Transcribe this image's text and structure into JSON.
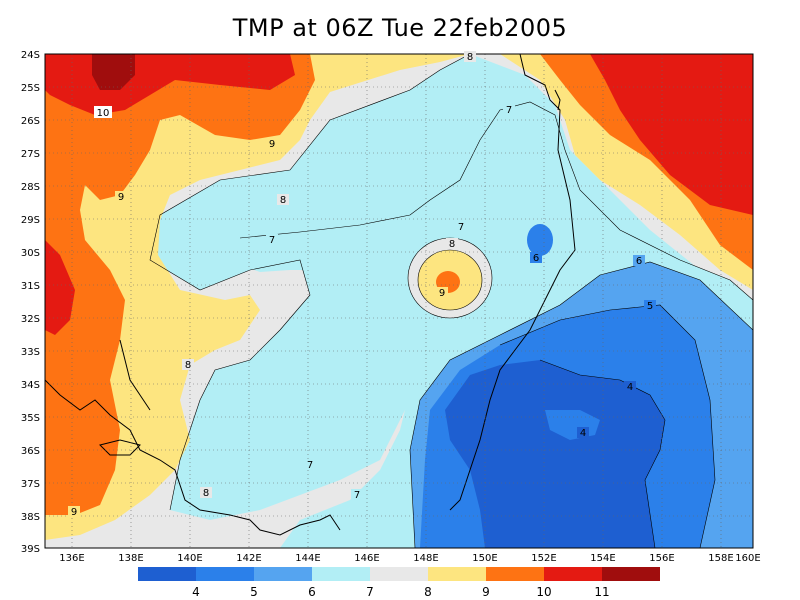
{
  "title": "TMP at 06Z Tue 22feb2005",
  "map": {
    "lat_labels": [
      "24S",
      "25S",
      "26S",
      "27S",
      "28S",
      "29S",
      "30S",
      "31S",
      "32S",
      "33S",
      "34S",
      "35S",
      "36S",
      "37S",
      "38S",
      "39S"
    ],
    "lon_labels": [
      "136E",
      "138E",
      "140E",
      "142E",
      "144E",
      "146E",
      "148E",
      "150E",
      "152E",
      "154E",
      "156E",
      "158E",
      "160E"
    ],
    "contour_labels": [
      "8",
      "7",
      "10",
      "9",
      "9",
      "8",
      "7",
      "7",
      "8",
      "6",
      "6",
      "9",
      "5",
      "8",
      "4",
      "4",
      "7",
      "7",
      "8",
      "9"
    ],
    "fill_colors": {
      "c4": "#1e5fd1",
      "c5": "#2b80ea",
      "c6": "#55a4f0",
      "c7": "#b2eef5",
      "c8": "#e8e8e8",
      "c9": "#fde580",
      "c10": "#fe7313",
      "c11": "#e41a12",
      "c12": "#a00d0d"
    }
  },
  "colorbar": {
    "labels": [
      "4",
      "5",
      "6",
      "7",
      "8",
      "9",
      "10",
      "11"
    ],
    "colors": [
      "#1e5fd1",
      "#2b80ea",
      "#55a4f0",
      "#b2eef5",
      "#e8e8e8",
      "#fde580",
      "#fe7313",
      "#e41a12",
      "#a00d0d"
    ]
  }
}
